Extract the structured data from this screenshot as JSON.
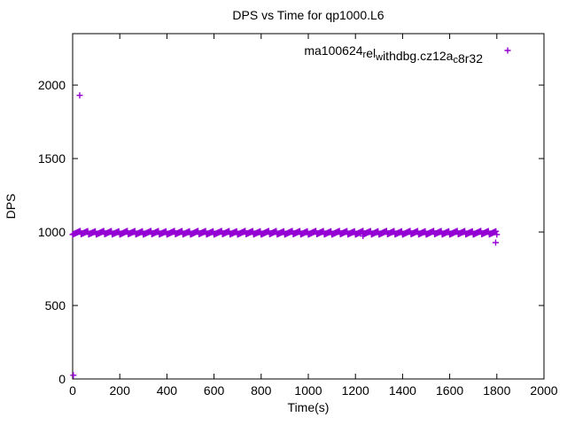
{
  "colors": {
    "series": "#9400d3",
    "axis": "#000000",
    "background": "#ffffff"
  },
  "legend": {
    "plain": "ma100624_rel_withdbg.cz12a_c8r32",
    "parts": [
      {
        "text": "ma100624",
        "sub": false
      },
      {
        "text": "r",
        "sub": true
      },
      {
        "text": "el",
        "sub": false
      },
      {
        "text": "w",
        "sub": true
      },
      {
        "text": "ithdbg.cz12a",
        "sub": false
      },
      {
        "text": "c",
        "sub": true
      },
      {
        "text": "8r32",
        "sub": false
      }
    ]
  },
  "chart_data": {
    "type": "scatter",
    "title": "DPS vs Time for qp1000.L6",
    "xlabel": "Time(s)",
    "ylabel": "DPS",
    "xlim": [
      0,
      2000
    ],
    "ylim": [
      0,
      2350
    ],
    "xticks": [
      0,
      200,
      400,
      600,
      800,
      1000,
      1200,
      1400,
      1600,
      1800,
      2000
    ],
    "yticks": [
      0,
      500,
      1000,
      1500,
      2000
    ],
    "grid": false,
    "legend_position": "top-right-inside",
    "marker": "plus",
    "series": [
      {
        "name": "ma100624_rel_withdbg.cz12a_c8r32",
        "color": "#9400d3",
        "band": {
          "x_start": 0,
          "x_end": 1800,
          "y_center": 995,
          "y_jitter": 12,
          "x_step": 4
        },
        "points": [
          [
            30,
            1930
          ],
          [
            3,
            25
          ],
          [
            1232,
            973
          ],
          [
            1795,
            928
          ]
        ]
      }
    ]
  }
}
